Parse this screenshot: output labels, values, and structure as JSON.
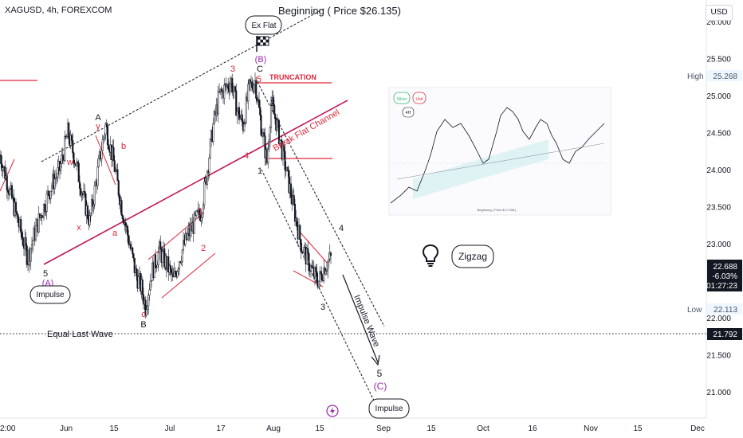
{
  "header": {
    "symbol": "XAGUSD, 4h, FOREXCOM"
  },
  "title": "Beginning ( Price $26.135)",
  "currency": "USD",
  "colors": {
    "candle": "#131722",
    "wave_red": "#e0273b",
    "wave_purple": "#9c27b0",
    "channel": "#131722"
  },
  "chart_data": {
    "type": "candlestick",
    "title": "Beginning ( Price $26.135)",
    "symbol": "XAGUSD",
    "interval": "4h",
    "exchange": "FOREXCOM",
    "x_ticks": [
      "Jun",
      "15",
      "Jul",
      "17",
      "Aug",
      "15",
      "Sep",
      "15",
      "Oct",
      "16",
      "Nov",
      "15",
      "Dec"
    ],
    "y_ticks": [
      21.0,
      21.5,
      22.0,
      22.5,
      23.0,
      23.5,
      24.0,
      24.5,
      25.0,
      25.5,
      26.0
    ],
    "ylim": [
      20.8,
      26.2
    ],
    "grid": false,
    "price_path": [
      [
        0,
        24.2
      ],
      [
        3,
        23.9
      ],
      [
        6,
        23.6
      ],
      [
        9,
        23.3
      ],
      [
        12,
        23.0
      ],
      [
        14,
        22.8
      ],
      [
        18,
        23.2
      ],
      [
        22,
        23.5
      ],
      [
        26,
        23.8
      ],
      [
        30,
        24.0
      ],
      [
        34,
        24.5
      ],
      [
        38,
        24.1
      ],
      [
        42,
        23.6
      ],
      [
        45,
        23.3
      ],
      [
        48,
        23.8
      ],
      [
        51,
        24.3
      ],
      [
        53,
        24.6
      ],
      [
        57,
        24.1
      ],
      [
        61,
        23.5
      ],
      [
        65,
        23.0
      ],
      [
        68,
        22.6
      ],
      [
        71,
        22.4
      ],
      [
        73,
        22.15
      ],
      [
        76,
        22.6
      ],
      [
        80,
        22.9
      ],
      [
        84,
        22.7
      ],
      [
        87,
        22.5
      ],
      [
        90,
        22.8
      ],
      [
        94,
        23.1
      ],
      [
        98,
        23.3
      ],
      [
        101,
        23.45
      ],
      [
        104,
        24.0
      ],
      [
        107,
        24.6
      ],
      [
        110,
        25.0
      ],
      [
        113,
        25.1
      ],
      [
        116,
        25.2
      ],
      [
        119,
        24.8
      ],
      [
        122,
        24.6
      ],
      [
        125,
        25.1
      ],
      [
        128,
        25.2
      ],
      [
        131,
        24.6
      ],
      [
        134,
        24.1
      ],
      [
        136,
        24.9
      ],
      [
        139,
        24.6
      ],
      [
        142,
        24.2
      ],
      [
        145,
        23.8
      ],
      [
        148,
        23.4
      ],
      [
        151,
        23.0
      ],
      [
        154,
        22.8
      ],
      [
        157,
        22.6
      ],
      [
        160,
        22.5
      ],
      [
        163,
        22.7
      ],
      [
        166,
        22.8
      ]
    ],
    "levels": [
      {
        "label": "High",
        "value": 25.268
      },
      {
        "label": "Low",
        "value": 22.113
      },
      {
        "label": "Equal Last Wave",
        "value": 21.792
      }
    ],
    "last_price": {
      "value": 22.688,
      "change": "-6.03%",
      "countdown": "01:27:23"
    },
    "wave_labels": [
      {
        "text": "5",
        "color": "black"
      },
      {
        "text": "(A)",
        "color": "purple"
      },
      {
        "text": "A",
        "color": "black"
      },
      {
        "text": "w",
        "color": "red"
      },
      {
        "text": "x",
        "color": "red"
      },
      {
        "text": "y",
        "color": "red"
      },
      {
        "text": "a",
        "color": "red"
      },
      {
        "text": "b",
        "color": "red"
      },
      {
        "text": "c",
        "color": "red"
      },
      {
        "text": "B",
        "color": "black"
      },
      {
        "text": "1",
        "color": "red"
      },
      {
        "text": "2",
        "color": "red"
      },
      {
        "text": "3",
        "color": "red"
      },
      {
        "text": "4",
        "color": "red"
      },
      {
        "text": "5",
        "color": "red"
      },
      {
        "text": "C",
        "color": "black"
      },
      {
        "text": "(B)",
        "color": "purple"
      },
      {
        "text": "1",
        "color": "black"
      },
      {
        "text": "2",
        "color": "black"
      },
      {
        "text": "3",
        "color": "black"
      },
      {
        "text": "4",
        "color": "black"
      },
      {
        "text": "5",
        "color": "black"
      },
      {
        "text": "(C)",
        "color": "purple"
      }
    ],
    "annotations": {
      "truncation": "TRUNCATION",
      "break_channel": "Break Flat Channel",
      "impulse_wave": "Impulse Wave",
      "equal_last_wave": "Equal Last Wave",
      "callout_impulse_left": "Impulse",
      "callout_ex_flat": "Ex Flat",
      "callout_impulse_bottom": "Impulse",
      "callout_zigzag": "Zigzag"
    }
  },
  "inset": {
    "legend": [
      "Silver",
      "Usd",
      "4H"
    ],
    "caption": "Beginning ( Price $ 17.551)"
  }
}
